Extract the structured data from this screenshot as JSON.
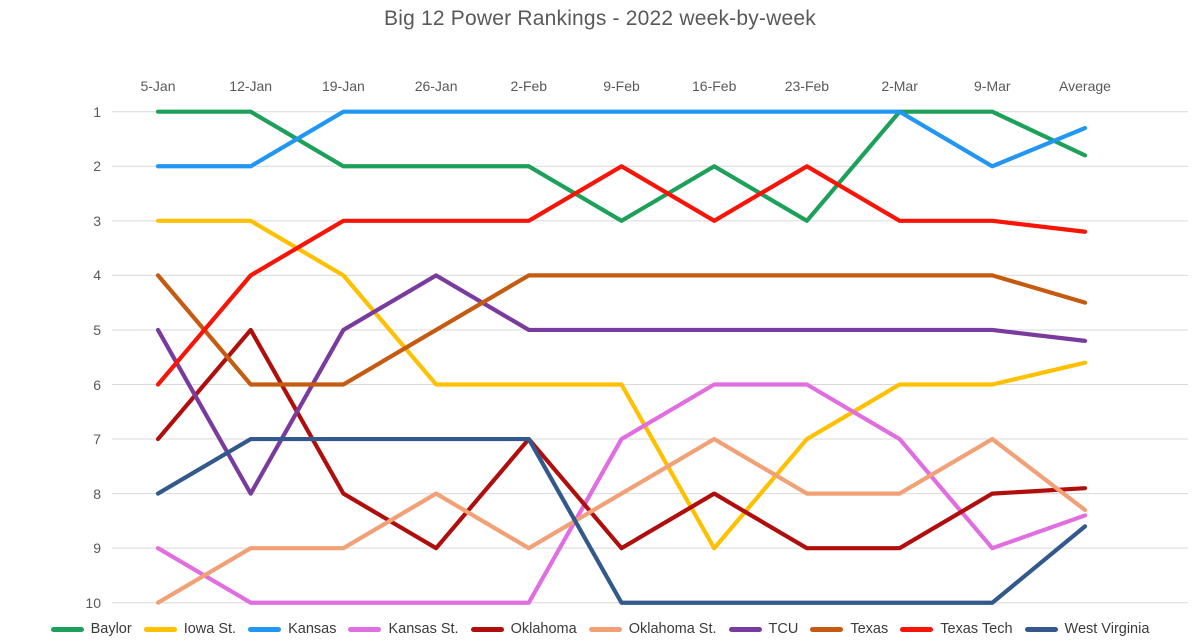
{
  "chart_data": {
    "type": "line",
    "title": "Big 12 Power Rankings - 2022 week-by-week",
    "xlabel": "",
    "ylabel": "",
    "categories": [
      "5-Jan",
      "12-Jan",
      "19-Jan",
      "26-Jan",
      "2-Feb",
      "9-Feb",
      "16-Feb",
      "23-Feb",
      "2-Mar",
      "9-Mar",
      "Average"
    ],
    "y_axis": {
      "ticks": [
        "1",
        "2",
        "3",
        "4",
        "5",
        "6",
        "7",
        "8",
        "9",
        "10"
      ],
      "min": 1,
      "max": 10,
      "inverted": true
    },
    "grid": true,
    "legend_position": "bottom",
    "gridline_color": "#d9d9d9",
    "series": [
      {
        "name": "Baylor",
        "color": "#1CA05A",
        "values": [
          1,
          1,
          2,
          2,
          2,
          3,
          2,
          3,
          1,
          1,
          1.8
        ]
      },
      {
        "name": "Iowa St.",
        "color": "#FFC000",
        "values": [
          3,
          3,
          4,
          6,
          6,
          6,
          9,
          7,
          6,
          6,
          5.6
        ]
      },
      {
        "name": "Kansas",
        "color": "#2196F3",
        "values": [
          2,
          2,
          1,
          1,
          1,
          1,
          1,
          1,
          1,
          2,
          1.3
        ]
      },
      {
        "name": "Kansas St.",
        "color": "#E06EE0",
        "values": [
          9,
          10,
          10,
          10,
          10,
          7,
          6,
          6,
          7,
          9,
          8.4
        ]
      },
      {
        "name": "Oklahoma",
        "color": "#B00E0C",
        "values": [
          7,
          5,
          8,
          9,
          7,
          9,
          8,
          9,
          9,
          8,
          7.9
        ]
      },
      {
        "name": "Oklahoma St.",
        "color": "#F2A076",
        "values": [
          10,
          9,
          9,
          8,
          9,
          8,
          7,
          8,
          8,
          7,
          8.3
        ]
      },
      {
        "name": "TCU",
        "color": "#7A3B9E",
        "values": [
          5,
          8,
          5,
          4,
          5,
          5,
          5,
          5,
          5,
          5,
          5.2
        ]
      },
      {
        "name": "Texas",
        "color": "#C55A11",
        "values": [
          4,
          6,
          6,
          5,
          4,
          4,
          4,
          4,
          4,
          4,
          4.5
        ]
      },
      {
        "name": "Texas Tech",
        "color": "#F91408",
        "values": [
          6,
          4,
          3,
          3,
          3,
          2,
          3,
          2,
          3,
          3,
          3.2
        ]
      },
      {
        "name": "West Virginia",
        "color": "#33598C",
        "values": [
          8,
          7,
          7,
          7,
          7,
          10,
          10,
          10,
          10,
          10,
          8.6
        ]
      }
    ]
  }
}
